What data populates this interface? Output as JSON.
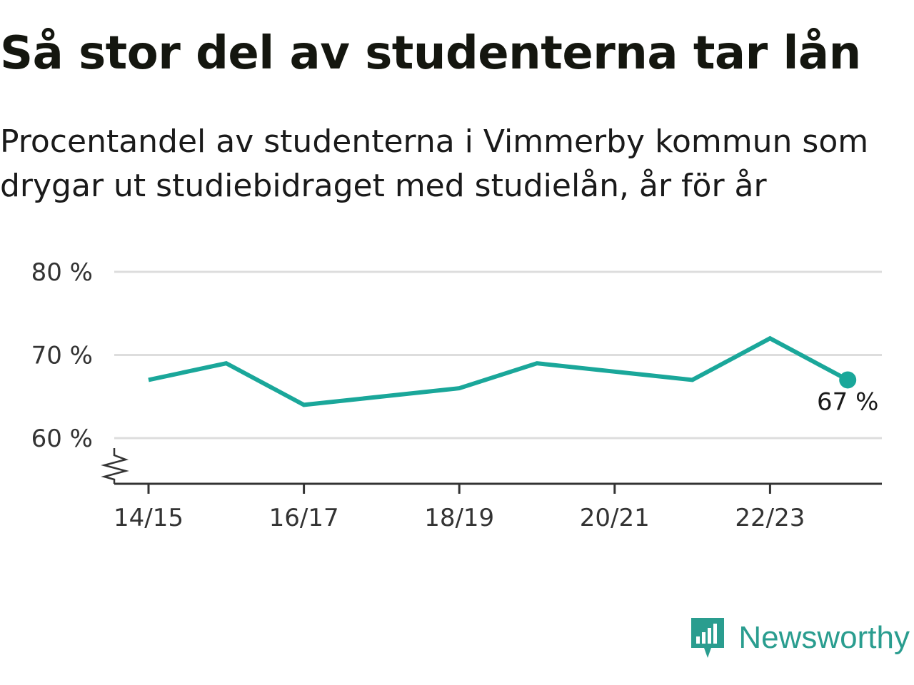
{
  "title": "Så stor del av studenterna tar lån",
  "subtitle": "Procentandel av studenterna i Vimmerby kommun som drygar ut studiebidraget med studielån, år för år",
  "brand": {
    "name": "Newsworthy",
    "icon": "bar-chart-speech-bubble-icon",
    "color": "#2a9d8f"
  },
  "chart_data": {
    "type": "line",
    "x": [
      "14/15",
      "15/16",
      "16/17",
      "17/18",
      "18/19",
      "19/20",
      "20/21",
      "21/22",
      "22/23",
      "23/24"
    ],
    "x_tick_labels": [
      "14/15",
      "16/17",
      "18/19",
      "20/21",
      "22/23"
    ],
    "series": [
      {
        "values": [
          67,
          69,
          64,
          65,
          66,
          69,
          68,
          67,
          72,
          67
        ],
        "color": "#1aa79a"
      }
    ],
    "y_ticks": [
      60,
      70,
      80
    ],
    "y_tick_labels": [
      "60 %",
      "70 %",
      "80 %"
    ],
    "ylim": [
      54.5,
      80
    ],
    "y_axis_break": true,
    "last_value_label": "67 %",
    "grid": true,
    "grid_color": "#dddddd",
    "axis_color": "#333333"
  }
}
